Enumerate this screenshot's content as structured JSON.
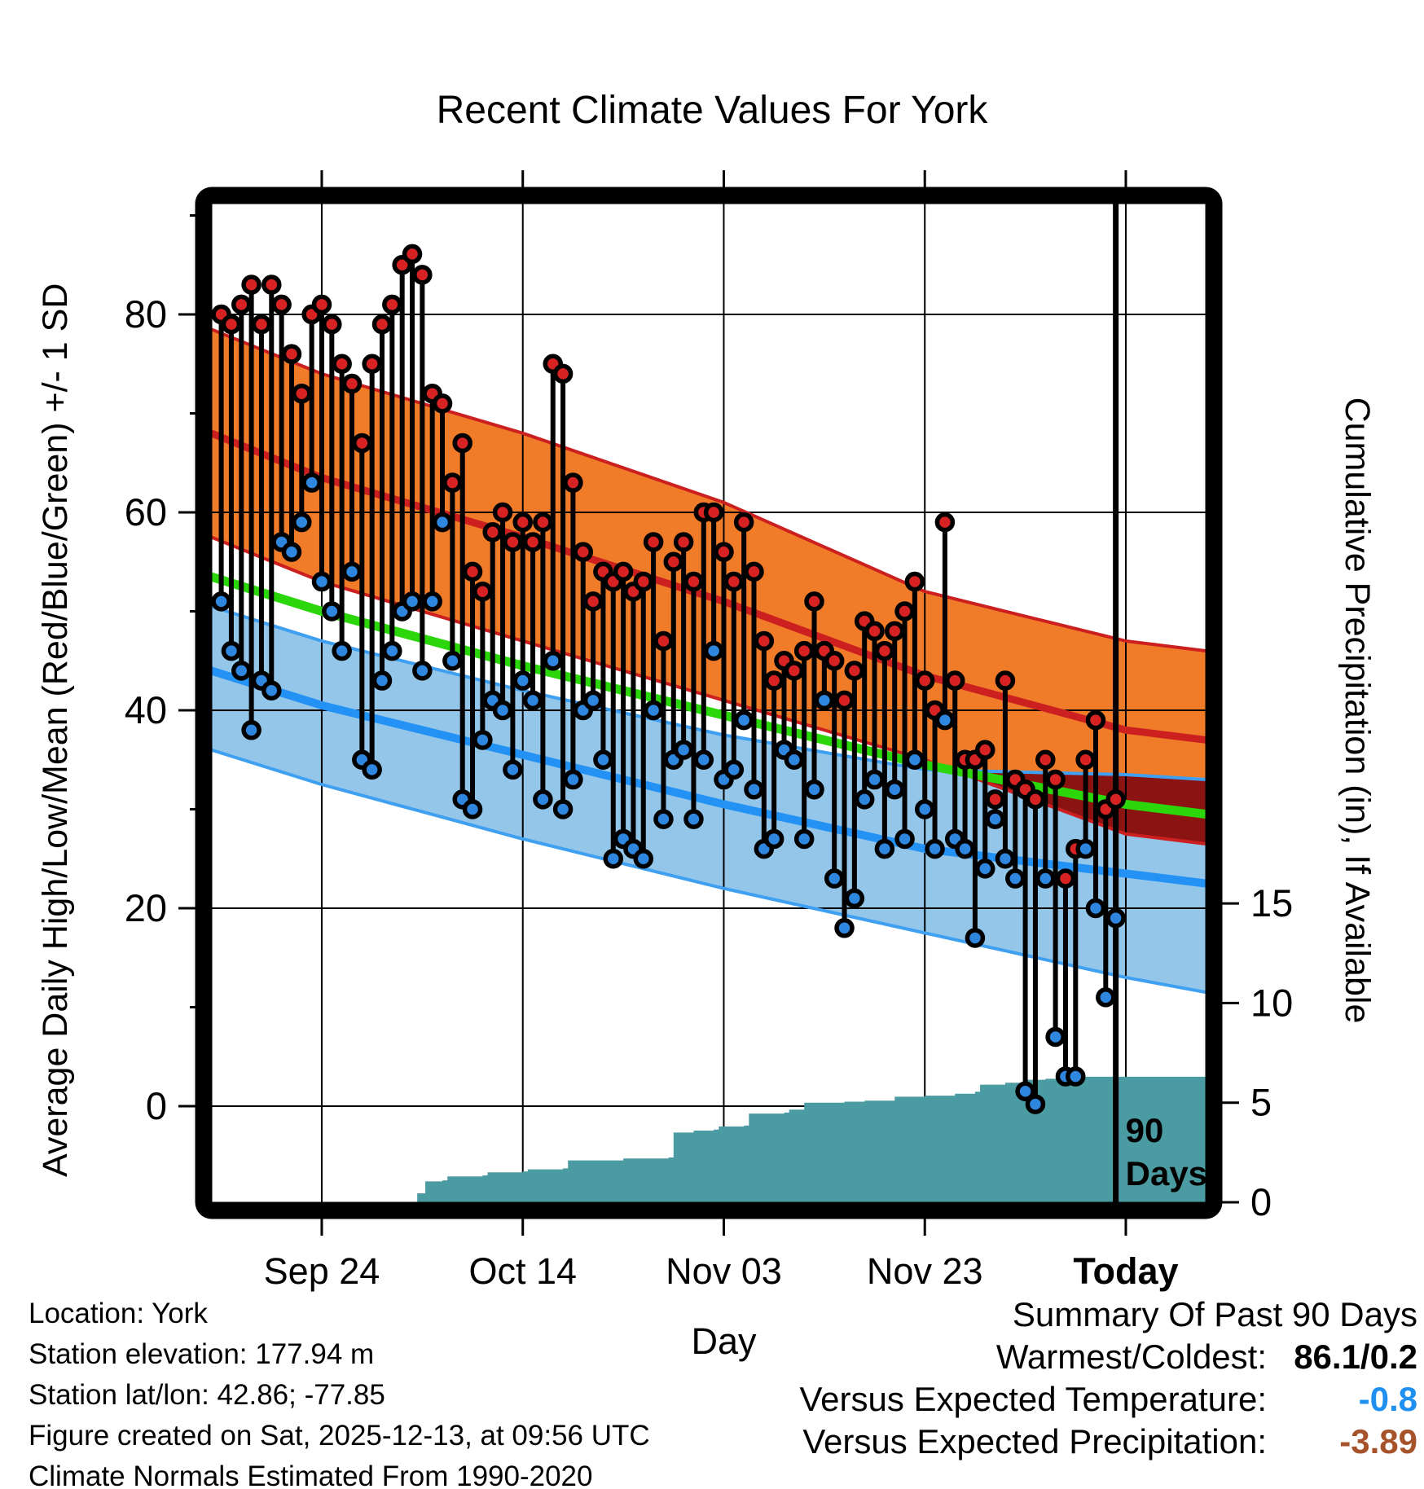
{
  "title": "Recent Climate Values For York",
  "axes": {
    "left": {
      "label": "Average Daily High/Low/Mean (Red/Blue/Green) +/- 1 SD",
      "major_ticks": [
        0,
        20,
        40,
        60,
        80
      ],
      "minor_ticks": [
        10,
        30,
        50,
        70,
        90
      ]
    },
    "right": {
      "label": "Cumulative Precipitation (in), If Available",
      "major_ticks": [
        0,
        5,
        10,
        15
      ]
    },
    "x": {
      "label": "Day",
      "ticks": [
        {
          "day": 10,
          "label": "Sep 24",
          "bold": false
        },
        {
          "day": 30,
          "label": "Oct 14",
          "bold": false
        },
        {
          "day": 50,
          "label": "Nov 03",
          "bold": false
        },
        {
          "day": 70,
          "label": "Nov 23",
          "bold": false
        },
        {
          "day": 90,
          "label": "Today",
          "bold": true
        }
      ]
    }
  },
  "annotations": {
    "ninety_line_day": 89,
    "ninety_label_line1": "90",
    "ninety_label_line2": "Days"
  },
  "footer_left": {
    "lines": [
      "Location: York",
      "Station elevation: 177.94 m",
      "Station lat/lon: 42.86; -77.85",
      "Figure created on Sat, 2025-12-13, at 09:56 UTC",
      "Climate Normals Estimated From 1990-2020"
    ]
  },
  "summary": {
    "title": "Summary Of Past 90 Days",
    "rows": [
      {
        "label": "Warmest/Coldest:",
        "value": "86.1/0.2",
        "color": "#000000"
      },
      {
        "label": "Versus Expected Temperature:",
        "value": "-0.8",
        "color": "#2090F0"
      },
      {
        "label": "Versus Expected Precipitation:",
        "value": "-3.89",
        "color": "#A6522A"
      }
    ]
  },
  "colors": {
    "orange_band": "#F07B28",
    "crimson_line": "#CC2020",
    "maroon_overlap": "#8B1412",
    "green_mean": "#2BD60A",
    "light_blue_band": "#93C6E9",
    "blue_band_edge": "#3FA0F2",
    "blue_mean_line": "#2492F5",
    "dot_red": "#D62222",
    "dot_blue": "#2E86DF",
    "teal_precip": "#4B9BA2",
    "gridline": "#000000",
    "frame": "#000000"
  },
  "chart_data": {
    "type": "composite",
    "title": "Recent Climate Values For York",
    "xlabel": "Day",
    "ylabel_left": "Average Daily High/Low/Mean (Red/Blue/Green) +/- 1 SD",
    "ylabel_right": "Cumulative Precipitation (in), If Available",
    "temp_axis_range": [
      -9.5,
      91.2
    ],
    "precip_axis_range": [
      0,
      50
    ],
    "x_day_range": [
      -1,
      98
    ],
    "grid": true,
    "normals": {
      "days": [
        -1,
        10,
        30,
        50,
        70,
        90,
        98
      ],
      "high_plus_sd": [
        78.5,
        74,
        68,
        61,
        52,
        47,
        46
      ],
      "mean_high": [
        68,
        63.5,
        57.5,
        51,
        43.5,
        38,
        37
      ],
      "high_minus_sd": [
        57.5,
        53,
        47,
        41,
        35,
        27.5,
        26.5
      ],
      "mean_temp": [
        53.5,
        50,
        44.5,
        39.5,
        34.5,
        30.5,
        29.5
      ],
      "low_plus_sd": [
        50.5,
        47,
        42,
        37.5,
        34,
        33.5,
        33
      ],
      "mean_low": [
        44,
        40.5,
        35.5,
        30.5,
        26,
        23.5,
        22.5
      ],
      "low_minus_sd": [
        36,
        32.5,
        27,
        22,
        17.5,
        13,
        11.5
      ]
    },
    "daily": {
      "days_from_start": "index 0 = 90 days ago, index 89 = yesterday",
      "highs": [
        80,
        79,
        81,
        83,
        79,
        83,
        81,
        76,
        72,
        80,
        81,
        79,
        75,
        73,
        67,
        75,
        79,
        81,
        85,
        86.1,
        84,
        72,
        71,
        63,
        67,
        54,
        52,
        58,
        60,
        57,
        59,
        57,
        59,
        75,
        74,
        63,
        56,
        51,
        54,
        53,
        54,
        52,
        53,
        57,
        47,
        55,
        57,
        53,
        60,
        60,
        56,
        53,
        59,
        54,
        47,
        43,
        45,
        44,
        46,
        51,
        46,
        45,
        41,
        44,
        49,
        48,
        46,
        48,
        50,
        53,
        43,
        40,
        59,
        43,
        35,
        35,
        36,
        31,
        43,
        33,
        32,
        31,
        35,
        33,
        23,
        26,
        35,
        39,
        30,
        31
      ],
      "lows": [
        51,
        46,
        44,
        38,
        43,
        42,
        57,
        56,
        59,
        63,
        53,
        50,
        46,
        54,
        35,
        34,
        43,
        46,
        50,
        51,
        44,
        51,
        59,
        45,
        31,
        30,
        37,
        41,
        40,
        34,
        43,
        41,
        31,
        45,
        30,
        33,
        40,
        41,
        35,
        25,
        27,
        26,
        25,
        40,
        29,
        35,
        36,
        29,
        35,
        46,
        33,
        34,
        39,
        32,
        26,
        27,
        36,
        35,
        27,
        32,
        41,
        23,
        18,
        21,
        31,
        33,
        26,
        32,
        27,
        35,
        30,
        26,
        39,
        27,
        26,
        17,
        24,
        29,
        25,
        23,
        1.5,
        0.2,
        23,
        7,
        3,
        3,
        26,
        20,
        11,
        19
      ]
    },
    "cumulative_precip_in": {
      "points": [
        [
          0,
          0
        ],
        [
          19,
          0
        ],
        [
          19.5,
          0.45
        ],
        [
          20.3,
          1.05
        ],
        [
          22,
          1.1
        ],
        [
          22.5,
          1.3
        ],
        [
          26,
          1.35
        ],
        [
          26.5,
          1.5
        ],
        [
          30,
          1.55
        ],
        [
          30.5,
          1.65
        ],
        [
          34,
          1.7
        ],
        [
          34.5,
          2.1
        ],
        [
          40,
          2.2
        ],
        [
          44.5,
          2.25
        ],
        [
          45,
          3.5
        ],
        [
          47,
          3.6
        ],
        [
          49,
          3.65
        ],
        [
          49.5,
          3.8
        ],
        [
          52,
          3.85
        ],
        [
          52.5,
          4.45
        ],
        [
          56,
          4.5
        ],
        [
          56.5,
          4.65
        ],
        [
          58,
          5.0
        ],
        [
          62,
          5.05
        ],
        [
          64,
          5.1
        ],
        [
          67,
          5.3
        ],
        [
          70,
          5.35
        ],
        [
          73,
          5.45
        ],
        [
          75,
          5.55
        ],
        [
          75.5,
          5.9
        ],
        [
          78,
          6.0
        ],
        [
          80,
          6.15
        ],
        [
          82,
          6.2
        ],
        [
          84,
          6.25
        ],
        [
          86,
          6.3
        ],
        [
          98,
          6.3
        ]
      ],
      "final_value": 6.3
    }
  }
}
